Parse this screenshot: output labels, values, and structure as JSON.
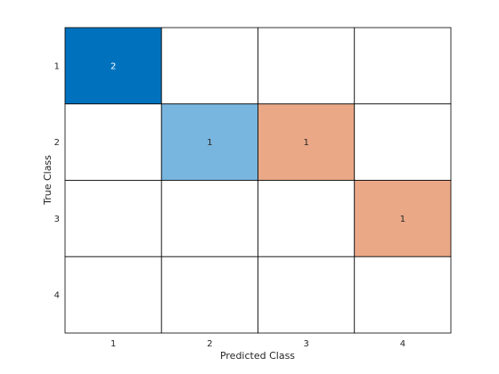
{
  "chart_data": {
    "type": "heatmap",
    "title": "",
    "xlabel": "Predicted Class",
    "ylabel": "True Class",
    "x_categories": [
      "1",
      "2",
      "3",
      "4"
    ],
    "y_categories": [
      "1",
      "2",
      "3",
      "4"
    ],
    "values": [
      [
        2,
        0,
        0,
        0
      ],
      [
        0,
        1,
        1,
        0
      ],
      [
        0,
        0,
        0,
        1
      ],
      [
        0,
        0,
        0,
        0
      ]
    ],
    "grid": true,
    "colors": {
      "correct_strong": "#0072bd",
      "correct_light": "#79b6df",
      "incorrect": "#eaa887",
      "empty": "#ffffff",
      "grid_line": "#000000",
      "text_on_dark": "#ffffff",
      "text_on_light": "#262626"
    }
  }
}
